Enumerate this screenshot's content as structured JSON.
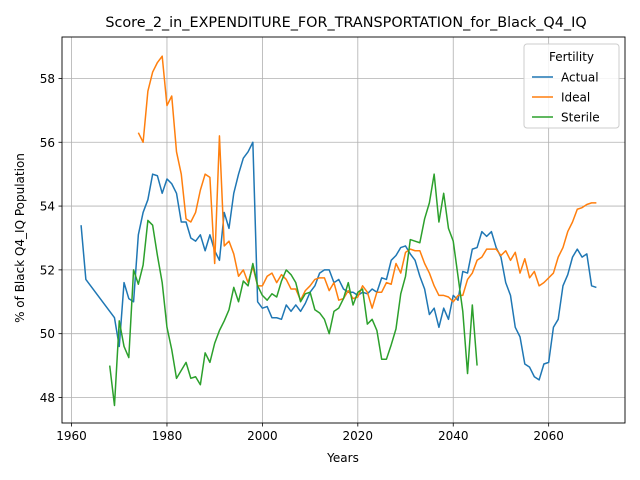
{
  "chart_data": {
    "type": "line",
    "title": "Score_2_in_EXPENDITURE_FOR_TRANSPORTATION_for_Black_Q4_IQ",
    "xlabel": "Years",
    "ylabel": "% of Black Q4_IQ Population",
    "xlim": [
      1958,
      2076
    ],
    "ylim": [
      47.2,
      59.3
    ],
    "xticks": [
      1960,
      1980,
      2000,
      2020,
      2040,
      2060
    ],
    "yticks": [
      48,
      50,
      52,
      54,
      56,
      58
    ],
    "grid": true,
    "legend": {
      "title": "Fertility",
      "placement": "top-right",
      "entries": [
        "Actual",
        "Ideal",
        "Sterile"
      ]
    },
    "series": [
      {
        "name": "Actual",
        "color": "#1f77b4",
        "x": [
          1962,
          1963,
          1964,
          1965,
          1966,
          1967,
          1968,
          1969,
          1970,
          1971,
          1972,
          1973,
          1974,
          1975,
          1976,
          1977,
          1978,
          1979,
          1980,
          1981,
          1982,
          1983,
          1984,
          1985,
          1986,
          1987,
          1988,
          1989,
          1990,
          1991,
          1992,
          1993,
          1994,
          1995,
          1996,
          1997,
          1998,
          1999,
          2000,
          2001,
          2002,
          2003,
          2004,
          2005,
          2006,
          2007,
          2008,
          2009,
          2010,
          2011,
          2012,
          2013,
          2014,
          2015,
          2016,
          2017,
          2018,
          2019,
          2020,
          2021,
          2022,
          2023,
          2024,
          2025,
          2026,
          2027,
          2028,
          2029,
          2030,
          2031,
          2032,
          2033,
          2034,
          2035,
          2036,
          2037,
          2038,
          2039,
          2040,
          2041,
          2042,
          2043,
          2044,
          2045,
          2046,
          2047,
          2048,
          2049,
          2050,
          2051,
          2052,
          2053,
          2054,
          2055,
          2056,
          2057,
          2058,
          2059,
          2060,
          2061,
          2062,
          2063,
          2064,
          2065,
          2066,
          2067,
          2068,
          2069,
          2070
        ],
        "y": [
          53.4,
          51.7,
          51.5,
          51.3,
          51.1,
          50.9,
          50.7,
          50.5,
          49.6,
          51.6,
          51.1,
          51.0,
          53.1,
          53.8,
          54.2,
          55.0,
          54.95,
          54.4,
          54.85,
          54.7,
          54.4,
          53.5,
          53.5,
          53.0,
          52.9,
          53.1,
          52.6,
          53.1,
          52.6,
          52.3,
          53.8,
          53.3,
          54.4,
          55.0,
          55.5,
          55.7,
          56.0,
          51.0,
          50.8,
          50.85,
          50.5,
          50.5,
          50.45,
          50.9,
          50.7,
          50.9,
          50.7,
          50.95,
          51.3,
          51.5,
          51.9,
          52.0,
          52.0,
          51.6,
          51.7,
          51.4,
          51.3,
          51.3,
          51.2,
          51.3,
          51.25,
          51.4,
          51.3,
          51.75,
          51.7,
          52.3,
          52.45,
          52.7,
          52.75,
          52.5,
          52.3,
          51.8,
          51.4,
          50.6,
          50.8,
          50.2,
          50.8,
          50.45,
          51.2,
          51.05,
          51.95,
          51.9,
          52.65,
          52.7,
          53.2,
          53.05,
          53.2,
          52.7,
          52.4,
          51.6,
          51.2,
          50.2,
          49.9,
          49.05,
          48.95,
          48.65,
          48.55,
          49.05,
          49.1,
          50.2,
          50.45,
          51.5,
          51.85,
          52.4,
          52.65,
          52.4,
          52.5,
          51.5,
          51.45
        ]
      },
      {
        "name": "Ideal",
        "color": "#ff7f0e",
        "x": [
          1974,
          1975,
          1976,
          1977,
          1978,
          1979,
          1980,
          1981,
          1982,
          1983,
          1984,
          1985,
          1986,
          1987,
          1988,
          1989,
          1990,
          1991,
          1992,
          1993,
          1994,
          1995,
          1996,
          1997,
          1998,
          1999,
          2000,
          2001,
          2002,
          2003,
          2004,
          2005,
          2006,
          2007,
          2008,
          2009,
          2010,
          2011,
          2012,
          2013,
          2014,
          2015,
          2016,
          2017,
          2018,
          2019,
          2020,
          2021,
          2022,
          2023,
          2024,
          2025,
          2026,
          2027,
          2028,
          2029,
          2030,
          2031,
          2032,
          2033,
          2034,
          2035,
          2036,
          2037,
          2038,
          2039,
          2040,
          2041,
          2042,
          2043,
          2044,
          2045,
          2046,
          2047,
          2048,
          2049,
          2050,
          2051,
          2052,
          2053,
          2054,
          2055,
          2056,
          2057,
          2058,
          2059,
          2060,
          2061,
          2062,
          2063,
          2064,
          2065,
          2066,
          2067,
          2068,
          2069,
          2070
        ],
        "y": [
          56.3,
          56.0,
          57.6,
          58.2,
          58.5,
          58.7,
          57.15,
          57.45,
          55.7,
          55.0,
          53.6,
          53.5,
          53.8,
          54.5,
          55.0,
          54.9,
          52.2,
          56.2,
          52.75,
          52.9,
          52.5,
          51.8,
          52.0,
          51.6,
          52.1,
          51.5,
          51.5,
          51.8,
          51.9,
          51.6,
          51.85,
          51.7,
          51.4,
          51.4,
          51.05,
          51.35,
          51.5,
          51.7,
          51.75,
          51.75,
          51.35,
          51.6,
          51.05,
          51.1,
          51.35,
          51.1,
          51.15,
          51.5,
          51.3,
          50.8,
          51.3,
          51.3,
          51.6,
          51.55,
          52.2,
          51.9,
          52.55,
          52.65,
          52.6,
          52.6,
          52.2,
          51.9,
          51.5,
          51.2,
          51.2,
          51.15,
          51.0,
          51.2,
          51.2,
          51.7,
          51.9,
          52.3,
          52.4,
          52.65,
          52.65,
          52.65,
          52.45,
          52.6,
          52.3,
          52.55,
          51.9,
          52.35,
          51.75,
          51.95,
          51.5,
          51.6,
          51.75,
          51.9,
          52.4,
          52.7,
          53.2,
          53.5,
          53.9,
          53.95,
          54.05,
          54.1,
          54.1
        ]
      },
      {
        "name": "Sterile",
        "color": "#2ca02c",
        "x": [
          1968,
          1969,
          1970,
          1971,
          1972,
          1973,
          1974,
          1975,
          1976,
          1977,
          1978,
          1979,
          1980,
          1981,
          1982,
          1983,
          1984,
          1985,
          1986,
          1987,
          1988,
          1989,
          1990,
          1991,
          1992,
          1993,
          1994,
          1995,
          1996,
          1997,
          1998,
          1999,
          2000,
          2001,
          2002,
          2003,
          2004,
          2005,
          2006,
          2007,
          2008,
          2009,
          2010,
          2011,
          2012,
          2013,
          2014,
          2015,
          2016,
          2017,
          2018,
          2019,
          2020,
          2021,
          2022,
          2023,
          2024,
          2025,
          2026,
          2027,
          2028,
          2029,
          2030,
          2031,
          2032,
          2033,
          2034,
          2035,
          2036,
          2037,
          2038,
          2039,
          2040,
          2041,
          2042,
          2043,
          2044,
          2045
        ],
        "y": [
          49.0,
          47.75,
          50.4,
          49.6,
          49.25,
          52.0,
          51.55,
          52.15,
          53.55,
          53.4,
          52.45,
          51.6,
          50.2,
          49.5,
          48.6,
          48.85,
          49.1,
          48.6,
          48.65,
          48.4,
          49.4,
          49.1,
          49.7,
          50.1,
          50.4,
          50.75,
          51.45,
          51.0,
          51.65,
          51.5,
          52.2,
          51.5,
          51.2,
          51.05,
          51.25,
          51.15,
          51.65,
          52.0,
          51.85,
          51.6,
          51.0,
          51.25,
          51.3,
          50.75,
          50.65,
          50.45,
          50.0,
          50.7,
          50.8,
          51.1,
          51.6,
          50.9,
          51.3,
          51.4,
          50.3,
          50.45,
          50.1,
          49.2,
          49.2,
          49.65,
          50.15,
          51.25,
          51.8,
          52.95,
          52.9,
          52.85,
          53.6,
          54.1,
          55.0,
          53.5,
          54.4,
          53.3,
          52.9,
          51.8,
          50.7,
          48.75,
          50.9,
          49.0
        ]
      }
    ]
  }
}
